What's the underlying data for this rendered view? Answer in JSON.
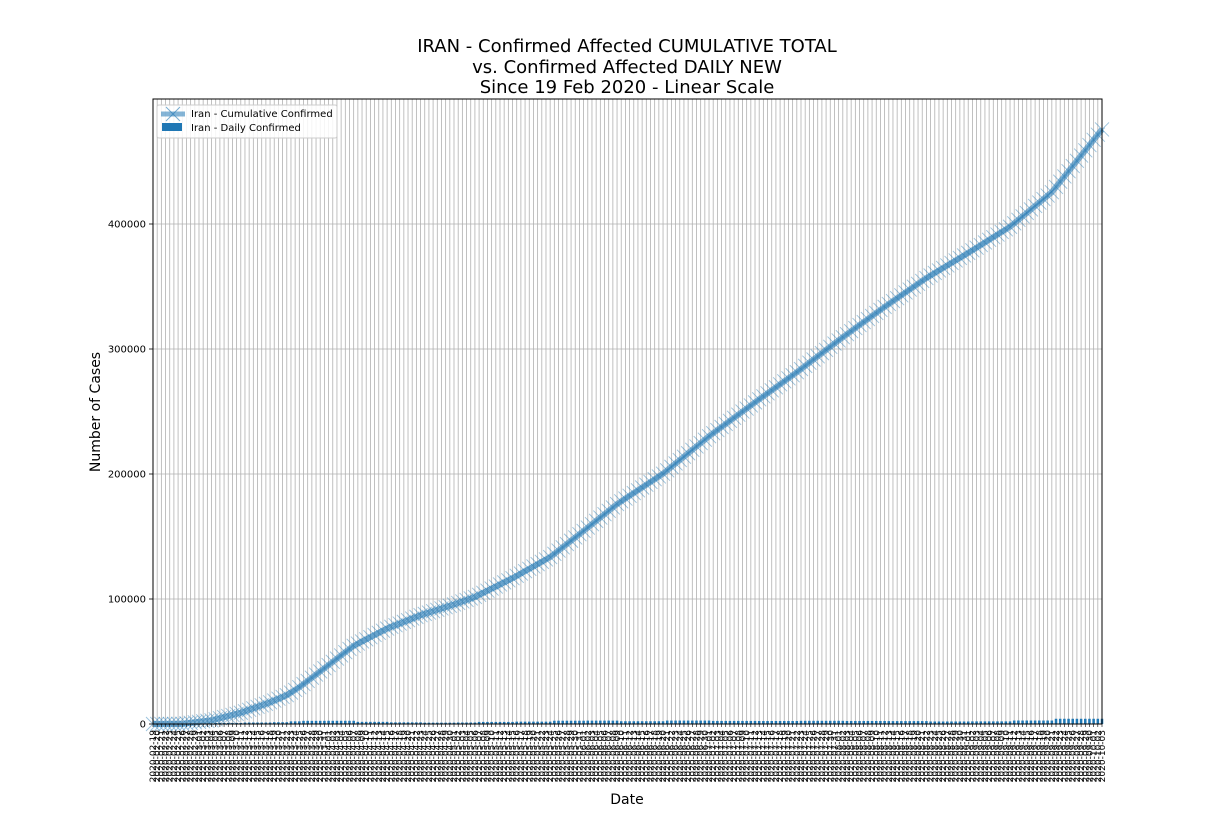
{
  "chart_data": {
    "type": "line",
    "title_lines": [
      "IRAN - Confirmed Affected CUMULATIVE TOTAL",
      "vs. Confirmed Affected DAILY NEW",
      "Since 19 Feb 2020 - Linear Scale"
    ],
    "xlabel": "Date",
    "ylabel": "Number of Cases",
    "x_start": "2020-02-19",
    "x_end": "2020-10-03",
    "ylim": [
      0,
      500000
    ],
    "yticks": [
      0,
      100000,
      200000,
      300000,
      400000
    ],
    "ytick_labels": [
      "0",
      "100000",
      "200000",
      "300000",
      "400000"
    ],
    "grid": true,
    "legend_position": "top-left",
    "cumulative_anchors": [
      [
        "2020-02-19",
        2
      ],
      [
        "2020-02-26",
        139
      ],
      [
        "2020-03-04",
        2922
      ],
      [
        "2020-03-11",
        9000
      ],
      [
        "2020-03-18",
        17361
      ],
      [
        "2020-03-22",
        23049
      ],
      [
        "2020-03-25",
        29406
      ],
      [
        "2020-03-31",
        44605
      ],
      [
        "2020-04-07",
        62589
      ],
      [
        "2020-04-15",
        76389
      ],
      [
        "2020-04-23",
        87026
      ],
      [
        "2020-05-01",
        95646
      ],
      [
        "2020-05-06",
        101650
      ],
      [
        "2020-05-15",
        116635
      ],
      [
        "2020-05-24",
        133521
      ],
      [
        "2020-06-01",
        154445
      ],
      [
        "2020-06-09",
        175927
      ],
      [
        "2020-06-20",
        200262
      ],
      [
        "2020-07-01",
        230211
      ],
      [
        "2020-07-12",
        257303
      ],
      [
        "2020-07-22",
        281413
      ],
      [
        "2020-08-02",
        309437
      ],
      [
        "2020-08-12",
        333699
      ],
      [
        "2020-08-22",
        356792
      ],
      [
        "2020-09-01",
        376894
      ],
      [
        "2020-09-11",
        397801
      ],
      [
        "2020-09-21",
        425481
      ],
      [
        "2020-10-03",
        475674
      ]
    ],
    "series": [
      {
        "name": "Iran - Cumulative Confirmed",
        "kind": "line",
        "color": "#1f77b4",
        "marker": "x"
      },
      {
        "name": "Iran - Daily Confirmed",
        "kind": "bar",
        "color": "#1f77b4"
      }
    ]
  }
}
